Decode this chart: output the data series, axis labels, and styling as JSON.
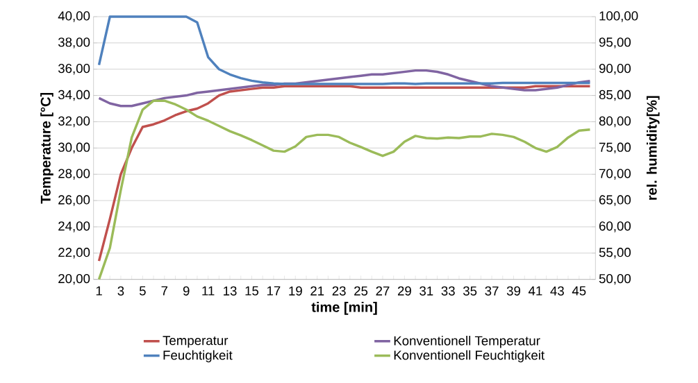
{
  "chart_data": {
    "type": "line",
    "xlabel": "time [min]",
    "ylabel": "Temperature [°C]",
    "y2label": "rel. humidity[%]",
    "categories": [
      "1",
      null,
      "3",
      null,
      "5",
      null,
      "7",
      null,
      "9",
      null,
      "11",
      null,
      "13",
      null,
      "15",
      null,
      "17",
      null,
      "19",
      null,
      "21",
      null,
      "23",
      null,
      "25",
      null,
      "27",
      null,
      "29",
      null,
      "31",
      null,
      "33",
      null,
      "35",
      null,
      "37",
      null,
      "39",
      null,
      "41",
      null,
      "43",
      null,
      "45",
      null
    ],
    "ylim": [
      20,
      40
    ],
    "yticks": [
      {
        "value": 20,
        "label": "20,00"
      },
      {
        "value": 22,
        "label": "22,00"
      },
      {
        "value": 24,
        "label": "24,00"
      },
      {
        "value": 26,
        "label": "26,00"
      },
      {
        "value": 28,
        "label": "28,00"
      },
      {
        "value": 30,
        "label": "30,00"
      },
      {
        "value": 32,
        "label": "32,00"
      },
      {
        "value": 34,
        "label": "34,00"
      },
      {
        "value": 36,
        "label": "36,00"
      },
      {
        "value": 38,
        "label": "38,00"
      },
      {
        "value": 40,
        "label": "40,00"
      }
    ],
    "y2lim": [
      50,
      100
    ],
    "y2ticks": [
      {
        "value": 50,
        "label": "50,00"
      },
      {
        "value": 55,
        "label": "55,00"
      },
      {
        "value": 60,
        "label": "60,00"
      },
      {
        "value": 65,
        "label": "65,00"
      },
      {
        "value": 70,
        "label": "70,00"
      },
      {
        "value": 75,
        "label": "75,00"
      },
      {
        "value": 80,
        "label": "80,00"
      },
      {
        "value": 85,
        "label": "85,00"
      },
      {
        "value": 90,
        "label": "90,00"
      },
      {
        "value": 95,
        "label": "95,00"
      },
      {
        "value": 100,
        "label": "100,00"
      }
    ],
    "grid": "y",
    "legend": "bottom",
    "marker": "none",
    "line_style": "solid",
    "series": [
      {
        "name": "Temperatur",
        "color": "#c0504d",
        "axis": "y",
        "values": [
          21.4,
          24.6,
          28.0,
          30.0,
          31.6,
          31.8,
          32.1,
          32.5,
          32.8,
          33.0,
          33.4,
          34.0,
          34.3,
          34.4,
          34.5,
          34.6,
          34.6,
          34.7,
          34.7,
          34.7,
          34.7,
          34.7,
          34.7,
          34.7,
          34.6,
          34.6,
          34.6,
          34.6,
          34.6,
          34.6,
          34.6,
          34.6,
          34.6,
          34.6,
          34.6,
          34.6,
          34.6,
          34.6,
          34.6,
          34.6,
          34.7,
          34.7,
          34.7,
          34.7,
          34.7,
          34.7
        ]
      },
      {
        "name": "Konventionell Temperatur",
        "color": "#8064a2",
        "axis": "y",
        "values": [
          33.8,
          33.4,
          33.2,
          33.2,
          33.4,
          33.6,
          33.8,
          33.9,
          34.0,
          34.2,
          34.3,
          34.4,
          34.5,
          34.6,
          34.7,
          34.8,
          34.8,
          34.9,
          34.9,
          35.0,
          35.1,
          35.2,
          35.3,
          35.4,
          35.5,
          35.6,
          35.6,
          35.7,
          35.8,
          35.9,
          35.9,
          35.8,
          35.6,
          35.3,
          35.1,
          34.9,
          34.7,
          34.6,
          34.5,
          34.4,
          34.4,
          34.5,
          34.6,
          34.8,
          35.0,
          35.1
        ]
      },
      {
        "name": "Feuchtigkeit",
        "color": "#4f81bd",
        "axis": "y2",
        "values": [
          90.8,
          100,
          100,
          100,
          100,
          100,
          100,
          100,
          100,
          98.9,
          92.3,
          90.0,
          89.0,
          88.3,
          87.8,
          87.5,
          87.3,
          87.2,
          87.2,
          87.2,
          87.2,
          87.2,
          87.2,
          87.2,
          87.2,
          87.2,
          87.2,
          87.3,
          87.3,
          87.2,
          87.3,
          87.3,
          87.3,
          87.3,
          87.3,
          87.3,
          87.3,
          87.4,
          87.4,
          87.4,
          87.4,
          87.4,
          87.4,
          87.4,
          87.4,
          87.4
        ]
      },
      {
        "name": "Konventionell Feuchtigkeit",
        "color": "#9bbb59",
        "axis": "y2",
        "values": [
          50.0,
          56.0,
          67.0,
          77.0,
          82.3,
          84.0,
          84.0,
          83.3,
          82.3,
          81.0,
          80.2,
          79.2,
          78.2,
          77.4,
          76.5,
          75.5,
          74.5,
          74.3,
          75.3,
          77.1,
          77.5,
          77.5,
          77.1,
          76.0,
          75.2,
          74.3,
          73.5,
          74.3,
          76.2,
          77.3,
          76.9,
          76.8,
          77.0,
          76.9,
          77.2,
          77.2,
          77.7,
          77.5,
          77.1,
          76.2,
          75.0,
          74.3,
          75.2,
          77.0,
          78.3,
          78.5
        ]
      }
    ]
  }
}
